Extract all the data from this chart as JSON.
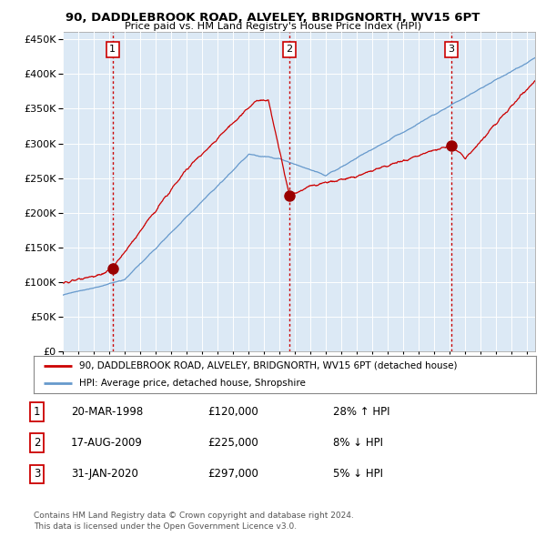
{
  "title": "90, DADDLEBROOK ROAD, ALVELEY, BRIDGNORTH, WV15 6PT",
  "subtitle": "Price paid vs. HM Land Registry's House Price Index (HPI)",
  "background_color": "#dce9f5",
  "red_line_color": "#cc0000",
  "blue_line_color": "#6699cc",
  "ylim": [
    0,
    460000
  ],
  "yticks": [
    0,
    50000,
    100000,
    150000,
    200000,
    250000,
    300000,
    350000,
    400000,
    450000
  ],
  "sale_points": [
    {
      "year": 1998.22,
      "price": 120000,
      "label": "1"
    },
    {
      "year": 2009.63,
      "price": 225000,
      "label": "2"
    },
    {
      "year": 2020.08,
      "price": 297000,
      "label": "3"
    }
  ],
  "legend_red": "90, DADDLEBROOK ROAD, ALVELEY, BRIDGNORTH, WV15 6PT (detached house)",
  "legend_blue": "HPI: Average price, detached house, Shropshire",
  "table_rows": [
    {
      "num": "1",
      "date": "20-MAR-1998",
      "price": "£120,000",
      "hpi": "28% ↑ HPI"
    },
    {
      "num": "2",
      "date": "17-AUG-2009",
      "price": "£225,000",
      "hpi": "8% ↓ HPI"
    },
    {
      "num": "3",
      "date": "31-JAN-2020",
      "price": "£297,000",
      "hpi": "5% ↓ HPI"
    }
  ],
  "footer": "Contains HM Land Registry data © Crown copyright and database right 2024.\nThis data is licensed under the Open Government Licence v3.0.",
  "vline_color": "#cc0000",
  "sale_marker_color": "#990000",
  "xlim_start": 1995.0,
  "xlim_end": 2025.5,
  "noise_scale_blue": 1500,
  "noise_scale_red": 2500
}
